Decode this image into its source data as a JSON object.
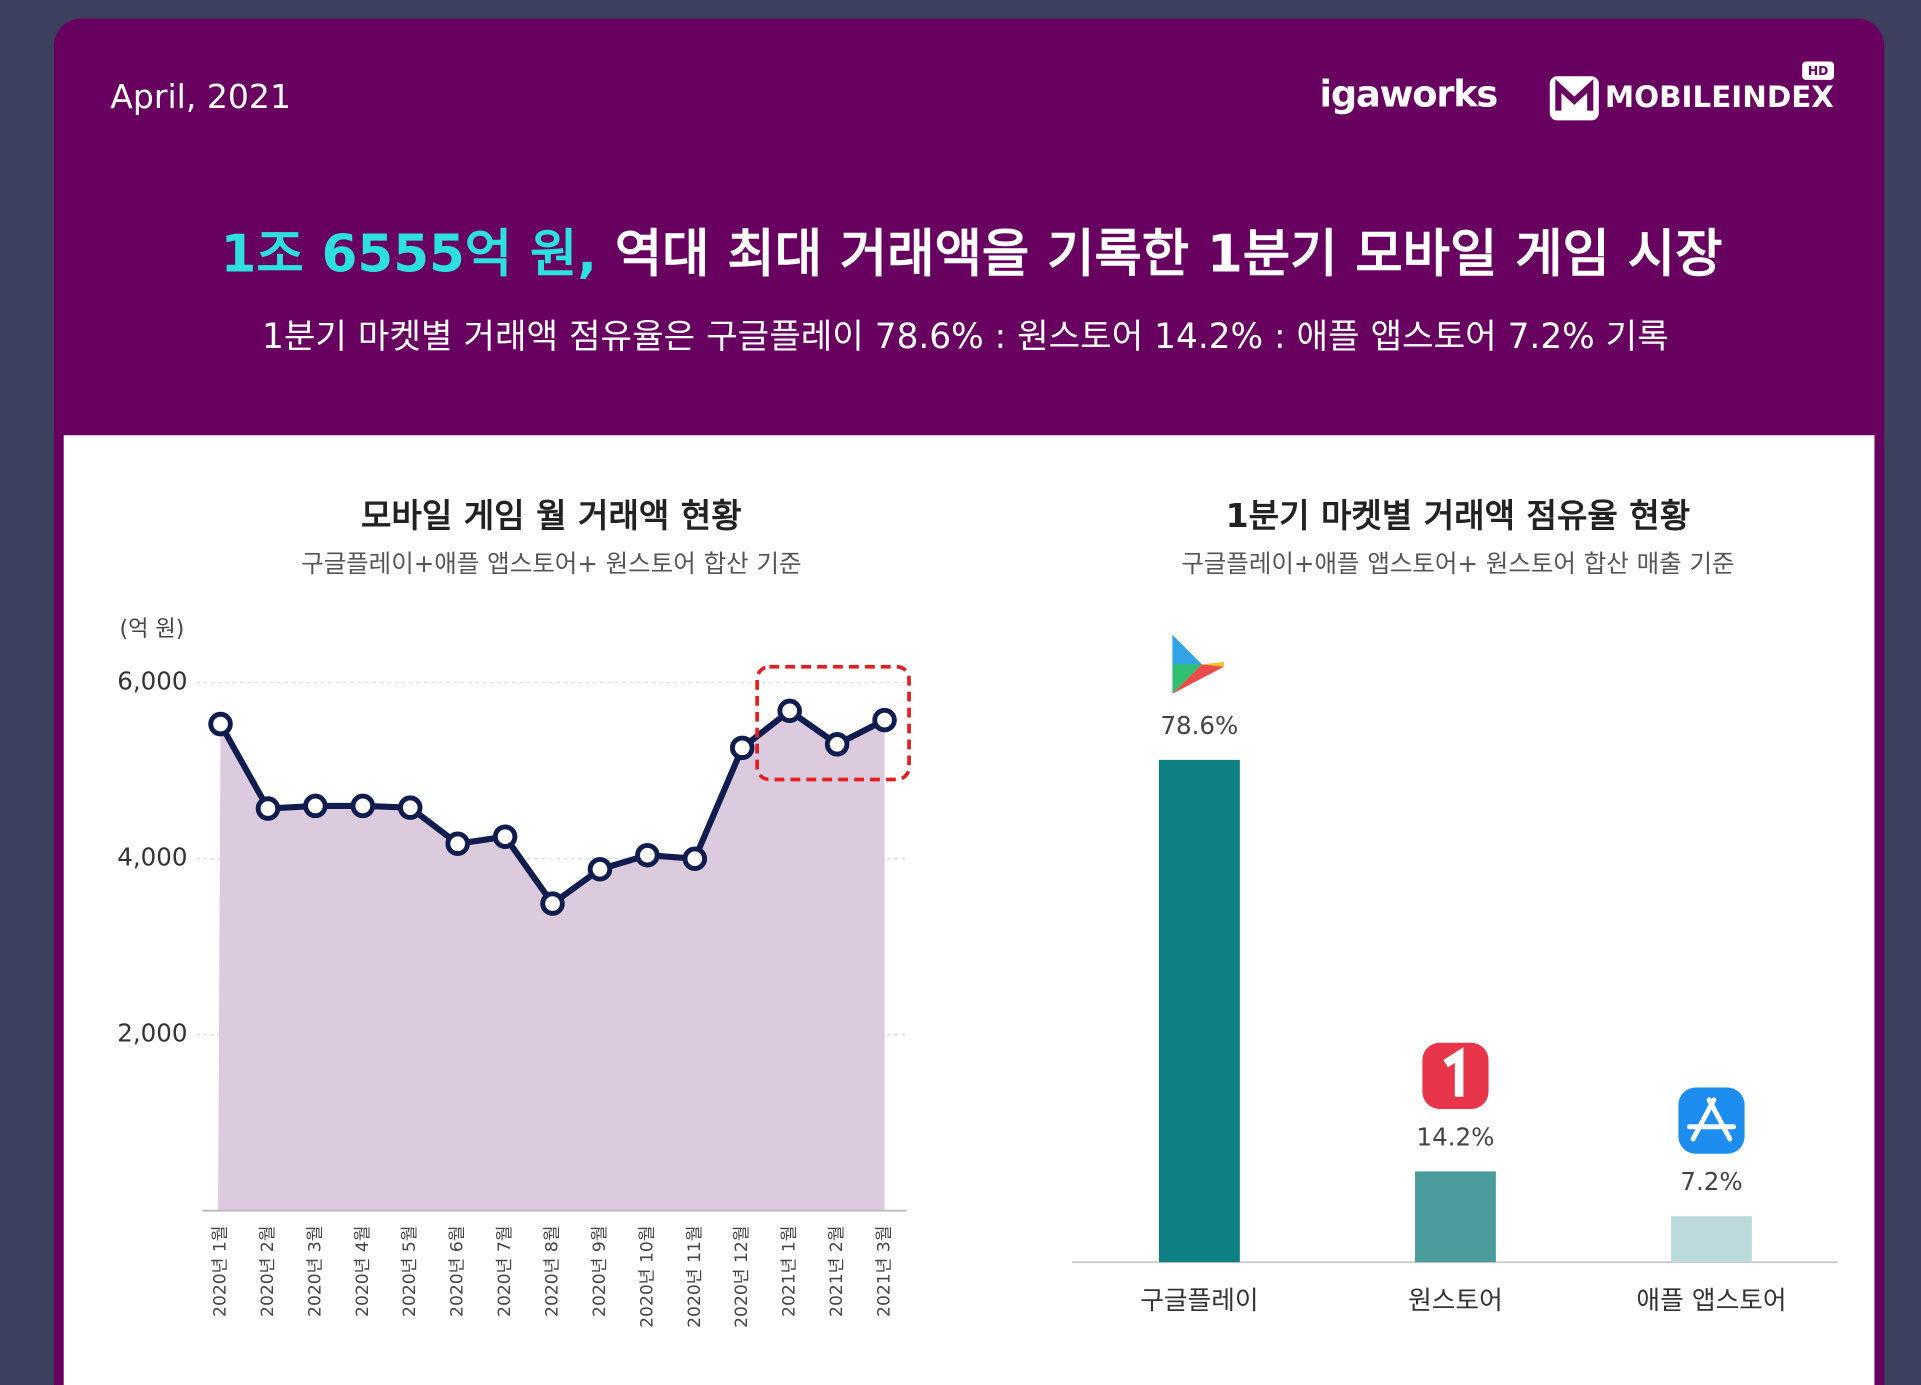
{
  "header": {
    "date": "April, 2021",
    "brand": "igaworks",
    "product": "MOBILEINDEX",
    "product_badge": "HD",
    "title_highlight": "1조 6555억 원,",
    "title_rest": " 역대 최대 거래액을 기록한 1분기 모바일 게임 시장",
    "subtitle": "1분기 마켓별 거래액 점유율은 구글플레이 78.6% : 원스토어 14.2% : 애플 앱스토어 7.2% 기록"
  },
  "chart_data": [
    {
      "type": "line",
      "title": "모바일 게임 월 거래액 현황",
      "subtitle": "구글플레이+애플 앱스토어+ 원스토어 합산 기준",
      "y_label": "(억 원)",
      "categories": [
        "2020년 1월",
        "2020년 2월",
        "2020년 3월",
        "2020년 4월",
        "2020년 5월",
        "2020년 6월",
        "2020년 7월",
        "2020년 8월",
        "2020년 9월",
        "2020년 10월",
        "2020년 11월",
        "2020년 12월",
        "2021년 1월",
        "2021년 2월",
        "2021년 3월"
      ],
      "values": [
        5530,
        4570,
        4600,
        4600,
        4580,
        4170,
        4250,
        3490,
        3880,
        4040,
        4000,
        5260,
        5680,
        5300,
        5575
      ],
      "color": "#0f1c4d",
      "area_color": "#dccadf",
      "ylim": [
        0,
        6000
      ],
      "yticks": [
        {
          "value": 2000,
          "label": "2,000"
        },
        {
          "value": 4000,
          "label": "4,000"
        },
        {
          "value": 6000,
          "label": "6,000"
        }
      ],
      "grid": true
    },
    {
      "type": "bar",
      "title": "1분기 마켓별 거래액 점유율 현황",
      "subtitle": "구글플레이+애플 앱스토어+ 원스토어 합산 매출 기준",
      "categories": [
        "구글플레이",
        "원스토어",
        "애플 앱스토어"
      ],
      "values": [
        78.6,
        14.2,
        7.2
      ],
      "value_labels": [
        "78.6%",
        "14.2%",
        "7.2%"
      ],
      "colors": [
        "#0e7f82",
        "#4a9b9b",
        "#bcdadb"
      ]
    }
  ]
}
